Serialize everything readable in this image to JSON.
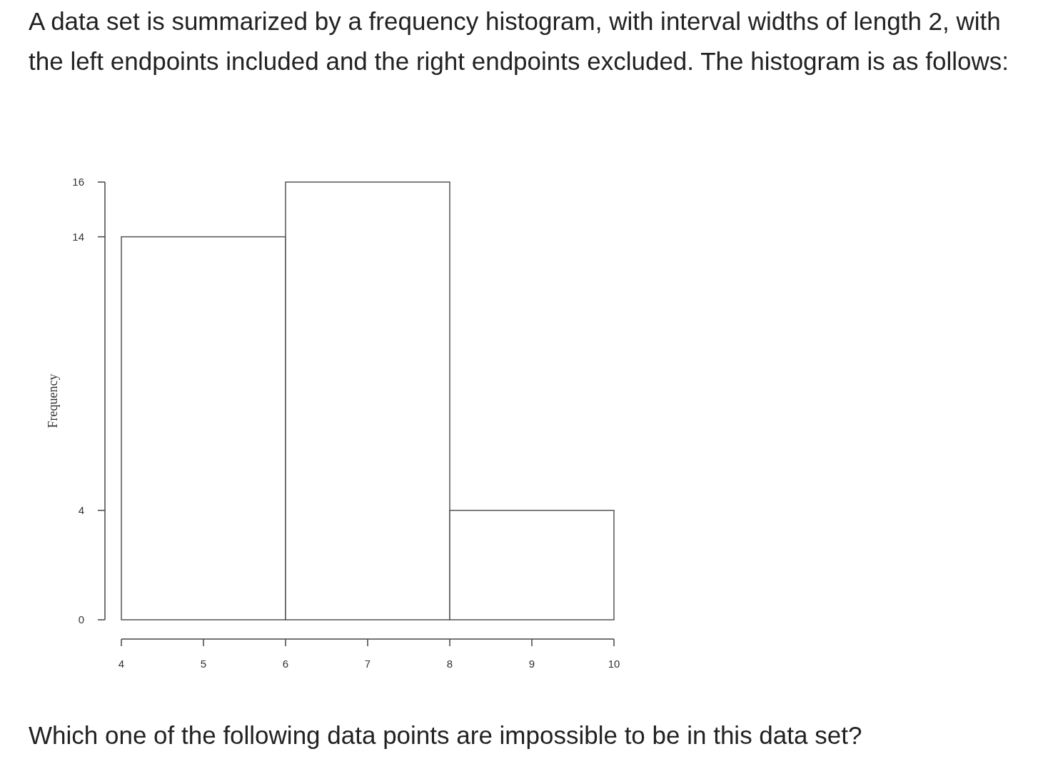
{
  "chart_data": {
    "type": "histogram",
    "title": "A data set is summarized by a frequency histogram, with interval widths of length 2, with the left endpoints included and the right endpoints excluded. The histogram is as follows:",
    "ylabel": "Frequency",
    "bins": [
      4,
      6,
      8,
      10
    ],
    "values": [
      14,
      16,
      4
    ],
    "color": "#ffffff",
    "xlim": [
      4,
      10
    ],
    "xticks": [
      4,
      5,
      6,
      7,
      8,
      9,
      10
    ],
    "ylim": [
      0,
      16
    ],
    "yticks": [
      0,
      4,
      14,
      16
    ],
    "grid": false,
    "annotations": [
      "Which one of the following data points are impossible to be in this data set?"
    ]
  }
}
